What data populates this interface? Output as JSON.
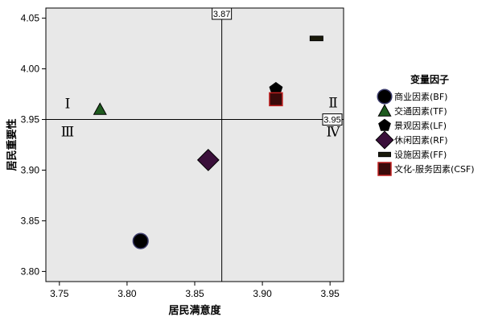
{
  "chart_data": {
    "type": "scatter",
    "xlabel": "居民满意度",
    "ylabel": "居民重要性",
    "xlim": [
      3.74,
      3.96
    ],
    "ylim": [
      3.79,
      4.06
    ],
    "xticks": [
      "3.75",
      "3.80",
      "3.85",
      "3.90",
      "3.95"
    ],
    "yticks": [
      "3.80",
      "3.85",
      "3.90",
      "3.95",
      "4.00",
      "4.05"
    ],
    "reference_lines": {
      "x": {
        "value": 3.87,
        "label": "3.87"
      },
      "y": {
        "value": 3.95,
        "label": "3.95"
      }
    },
    "quadrant_labels": [
      "Ⅰ",
      "Ⅱ",
      "Ⅲ",
      "Ⅳ"
    ],
    "legend_title": "变量因子",
    "legend_position": "right",
    "grid": false,
    "plot_background": "#e8e8e8",
    "series": [
      {
        "name": "商业因素(BF)",
        "marker": "circle",
        "color": "#000000",
        "x": 3.81,
        "y": 3.83
      },
      {
        "name": "交通因素(TF)",
        "marker": "triangle",
        "color": "#1e5a1e",
        "x": 3.78,
        "y": 3.96
      },
      {
        "name": "景观因素(LF)",
        "marker": "pentagon",
        "color": "#000000",
        "x": 3.91,
        "y": 3.98
      },
      {
        "name": "休闲因素(RF)",
        "marker": "diamond",
        "color": "#3a0f3a",
        "x": 3.86,
        "y": 3.91
      },
      {
        "name": "设施因素(FF)",
        "marker": "bar",
        "color": "#1a1a0a",
        "x": 3.94,
        "y": 4.03
      },
      {
        "name": "文化-服务因素(CSF)",
        "marker": "square",
        "color": "#3a0a0a",
        "x": 3.91,
        "y": 3.97
      }
    ]
  }
}
